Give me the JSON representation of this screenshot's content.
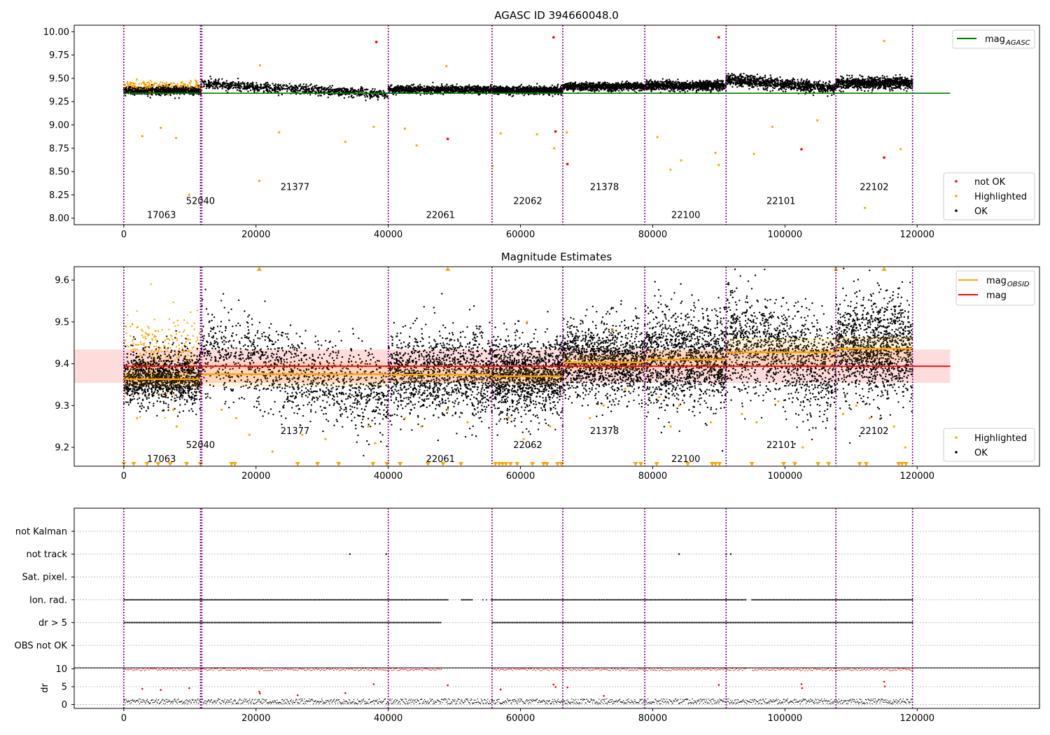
{
  "figure": {
    "background": "#ffffff"
  },
  "colors": {
    "obs_line": "#800080",
    "not_ok": "#ff0000",
    "highlighted": "#ffa500",
    "ok": "#000000",
    "mag_agasc": "#008000",
    "mag_obsid": "#ffa500",
    "mag": "#ff0000",
    "band": "#ffc0c0",
    "grid": "#b0b0b0",
    "axis": "#000000"
  },
  "chart_data": [
    {
      "type": "scatter",
      "title": "AGASC ID 394660048.0",
      "xlim": [
        -7500,
        138500
      ],
      "ylim": [
        7.93,
        10.07
      ],
      "xticks": [
        0,
        20000,
        40000,
        60000,
        80000,
        100000,
        120000
      ],
      "xtick_labels": [
        "0",
        "20000",
        "40000",
        "60000",
        "80000",
        "100000",
        "120000"
      ],
      "yticks": [
        8.0,
        8.25,
        8.5,
        8.75,
        9.0,
        9.25,
        9.5,
        9.75,
        10.0
      ],
      "ytick_labels": [
        "8.00",
        "8.25",
        "8.50",
        "8.75",
        "9.00",
        "9.25",
        "9.50",
        "9.75",
        "10.00"
      ],
      "obs_boundaries": [
        0,
        11600,
        11800,
        40000,
        55700,
        66400,
        78800,
        91100,
        107700,
        119300
      ],
      "obs_labels": [
        {
          "text": "17063",
          "x": 5700,
          "y": 8.04
        },
        {
          "text": "52040",
          "x": 11600,
          "y": 8.19
        },
        {
          "text": "21377",
          "x": 25900,
          "y": 8.34
        },
        {
          "text": "22061",
          "x": 47900,
          "y": 8.04
        },
        {
          "text": "22062",
          "x": 61100,
          "y": 8.19
        },
        {
          "text": "21378",
          "x": 72700,
          "y": 8.34
        },
        {
          "text": "22100",
          "x": 85000,
          "y": 8.04
        },
        {
          "text": "22101",
          "x": 99400,
          "y": 8.19
        },
        {
          "text": "22102",
          "x": 113500,
          "y": 8.34
        }
      ],
      "ok_segments": [
        {
          "x0": 0,
          "x1": 11700,
          "y": 9.37,
          "spread": 0.02
        },
        {
          "x0": 11700,
          "x1": 40000,
          "y": 9.38,
          "y_end": 9.33,
          "y_start": 9.44,
          "spread": 0.025
        },
        {
          "x0": 40000,
          "x1": 55700,
          "y": 9.38,
          "spread": 0.02
        },
        {
          "x0": 55700,
          "x1": 66400,
          "y": 9.37,
          "spread": 0.02
        },
        {
          "x0": 66400,
          "x1": 78800,
          "y": 9.41,
          "spread": 0.02
        },
        {
          "x0": 78800,
          "x1": 91100,
          "y": 9.42,
          "spread": 0.025
        },
        {
          "x0": 91100,
          "x1": 107700,
          "y": 9.45,
          "y_start": 9.49,
          "y_end": 9.39,
          "spread": 0.03
        },
        {
          "x0": 107700,
          "x1": 119300,
          "y": 9.45,
          "spread": 0.03
        }
      ],
      "highlighted_band": {
        "x0": 0,
        "x1": 11600,
        "y": 9.41,
        "spread": 0.03
      },
      "outliers_highlighted": [
        {
          "x": 2800,
          "y": 8.88
        },
        {
          "x": 5600,
          "y": 8.97
        },
        {
          "x": 7900,
          "y": 8.86
        },
        {
          "x": 20600,
          "y": 9.64
        },
        {
          "x": 20500,
          "y": 8.4
        },
        {
          "x": 23500,
          "y": 8.92
        },
        {
          "x": 33500,
          "y": 8.82
        },
        {
          "x": 37800,
          "y": 8.98
        },
        {
          "x": 42500,
          "y": 8.96
        },
        {
          "x": 44300,
          "y": 8.78
        },
        {
          "x": 48800,
          "y": 9.63
        },
        {
          "x": 57000,
          "y": 8.91
        },
        {
          "x": 62500,
          "y": 8.9
        },
        {
          "x": 67000,
          "y": 8.92
        },
        {
          "x": 80700,
          "y": 8.87
        },
        {
          "x": 84300,
          "y": 8.62
        },
        {
          "x": 82700,
          "y": 8.52
        },
        {
          "x": 89500,
          "y": 8.7
        },
        {
          "x": 90000,
          "y": 8.57
        },
        {
          "x": 95300,
          "y": 8.69
        },
        {
          "x": 98100,
          "y": 8.98
        },
        {
          "x": 104900,
          "y": 9.05
        },
        {
          "x": 112100,
          "y": 8.11
        },
        {
          "x": 115000,
          "y": 9.9
        },
        {
          "x": 117500,
          "y": 8.74
        },
        {
          "x": 9900,
          "y": 8.25
        },
        {
          "x": 55800,
          "y": 8.56
        },
        {
          "x": 65100,
          "y": 8.75
        }
      ],
      "outliers_not_ok": [
        {
          "x": 38200,
          "y": 9.89
        },
        {
          "x": 49000,
          "y": 8.85
        },
        {
          "x": 65000,
          "y": 9.94
        },
        {
          "x": 65300,
          "y": 8.93
        },
        {
          "x": 67100,
          "y": 8.58
        },
        {
          "x": 90000,
          "y": 9.94
        },
        {
          "x": 102500,
          "y": 8.74
        },
        {
          "x": 115000,
          "y": 8.65
        }
      ],
      "mag_agasc": {
        "x0": 0,
        "x1": 125000,
        "y": 9.34
      },
      "legend_upper": [
        {
          "label": "mag",
          "sub": "AGASC",
          "kind": "line",
          "color_key": "mag_agasc"
        }
      ],
      "legend_lower": [
        {
          "label": "not OK",
          "kind": "dot",
          "color_key": "not_ok"
        },
        {
          "label": "Highlighted",
          "kind": "dot",
          "color_key": "highlighted"
        },
        {
          "label": "OK",
          "kind": "dot",
          "color_key": "ok"
        }
      ]
    },
    {
      "type": "scatter",
      "title": "Magnitude Estimates",
      "xlim": [
        -7500,
        138500
      ],
      "ylim": [
        9.155,
        9.632
      ],
      "xticks": [
        0,
        20000,
        40000,
        60000,
        80000,
        100000,
        120000
      ],
      "xtick_labels": [
        "0",
        "20000",
        "40000",
        "60000",
        "80000",
        "100000",
        "120000"
      ],
      "yticks": [
        9.2,
        9.3,
        9.4,
        9.5,
        9.6
      ],
      "ytick_labels": [
        "9.2",
        "9.3",
        "9.4",
        "9.5",
        "9.6"
      ],
      "obs_boundaries": [
        0,
        11600,
        11800,
        40000,
        55700,
        66400,
        78800,
        91100,
        107700,
        119300
      ],
      "obs_labels": [
        {
          "text": "17063",
          "x": 5700,
          "y": 9.173
        },
        {
          "text": "52040",
          "x": 11600,
          "y": 9.207
        },
        {
          "text": "21377",
          "x": 25900,
          "y": 9.24
        },
        {
          "text": "22061",
          "x": 47900,
          "y": 9.173
        },
        {
          "text": "22062",
          "x": 61100,
          "y": 9.207
        },
        {
          "text": "21378",
          "x": 72700,
          "y": 9.24
        },
        {
          "text": "22100",
          "x": 85000,
          "y": 9.173
        },
        {
          "text": "22101",
          "x": 99400,
          "y": 9.207
        },
        {
          "text": "22102",
          "x": 113500,
          "y": 9.24
        }
      ],
      "mag_obsid": [
        {
          "x0": 0,
          "x1": 11700,
          "y": 9.363,
          "std": 0.018
        },
        {
          "x0": 11700,
          "x1": 40000,
          "y": 9.375,
          "std": 0.03
        },
        {
          "x0": 40000,
          "x1": 55700,
          "y": 9.374,
          "std": 0.02
        },
        {
          "x0": 55700,
          "x1": 66400,
          "y": 9.37,
          "std": 0.02
        },
        {
          "x0": 66400,
          "x1": 78800,
          "y": 9.403,
          "std": 0.02
        },
        {
          "x0": 78800,
          "x1": 91100,
          "y": 9.41,
          "std": 0.022
        },
        {
          "x0": 91100,
          "x1": 107700,
          "y": 9.427,
          "std": 0.035
        },
        {
          "x0": 107700,
          "x1": 119300,
          "y": 9.436,
          "std": 0.03
        }
      ],
      "ok_segments": [
        {
          "x0": 0,
          "x1": 11700,
          "y": 9.365,
          "spread": 0.03
        },
        {
          "x0": 11700,
          "x1": 40000,
          "y": 9.38,
          "y_start": 9.44,
          "y_end": 9.32,
          "spread": 0.05
        },
        {
          "x0": 40000,
          "x1": 55700,
          "y": 9.375,
          "spread": 0.05
        },
        {
          "x0": 55700,
          "x1": 66400,
          "y": 9.37,
          "spread": 0.045
        },
        {
          "x0": 66400,
          "x1": 78800,
          "y": 9.405,
          "spread": 0.045
        },
        {
          "x0": 78800,
          "x1": 91100,
          "y": 9.41,
          "spread": 0.06
        },
        {
          "x0": 91100,
          "x1": 107700,
          "y": 9.43,
          "y_start": 9.47,
          "y_end": 9.38,
          "spread": 0.06
        },
        {
          "x0": 107700,
          "x1": 119300,
          "y": 9.44,
          "spread": 0.06
        }
      ],
      "highlighted_band": {
        "x0": 0,
        "x1": 11600,
        "y": 9.42,
        "spread": 0.045
      },
      "outliers_highlighted": [
        {
          "x": 2000,
          "y": 9.27
        },
        {
          "x": 7500,
          "y": 9.29
        },
        {
          "x": 8000,
          "y": 9.25
        },
        {
          "x": 14800,
          "y": 9.29
        },
        {
          "x": 17000,
          "y": 9.27
        },
        {
          "x": 19000,
          "y": 9.23
        },
        {
          "x": 22500,
          "y": 9.19
        },
        {
          "x": 27000,
          "y": 9.23
        },
        {
          "x": 30500,
          "y": 9.22
        },
        {
          "x": 37000,
          "y": 9.25
        },
        {
          "x": 38000,
          "y": 9.21
        },
        {
          "x": 42500,
          "y": 9.27
        },
        {
          "x": 45000,
          "y": 9.25
        },
        {
          "x": 49000,
          "y": 9.29
        },
        {
          "x": 52000,
          "y": 9.26
        },
        {
          "x": 58200,
          "y": 9.27
        },
        {
          "x": 60500,
          "y": 9.22
        },
        {
          "x": 64500,
          "y": 9.25
        },
        {
          "x": 70500,
          "y": 9.27
        },
        {
          "x": 72600,
          "y": 9.3
        },
        {
          "x": 75800,
          "y": 9.34
        },
        {
          "x": 81000,
          "y": 9.32
        },
        {
          "x": 82700,
          "y": 9.25
        },
        {
          "x": 84000,
          "y": 9.3
        },
        {
          "x": 88800,
          "y": 9.26
        },
        {
          "x": 93500,
          "y": 9.28
        },
        {
          "x": 95700,
          "y": 9.26
        },
        {
          "x": 99000,
          "y": 9.31
        },
        {
          "x": 102700,
          "y": 9.2
        },
        {
          "x": 108800,
          "y": 9.28
        },
        {
          "x": 110800,
          "y": 9.3
        },
        {
          "x": 112800,
          "y": 9.27
        },
        {
          "x": 116500,
          "y": 9.25
        },
        {
          "x": 118200,
          "y": 9.2
        },
        {
          "x": 61000,
          "y": 9.5
        },
        {
          "x": 74000,
          "y": 9.48
        }
      ],
      "clipped_top": [
        20500,
        49000,
        107700,
        115000
      ],
      "clipped_bottom": [
        0,
        1500,
        3500,
        5200,
        7000,
        9500,
        11600,
        16300,
        16800,
        26300,
        29300,
        32500,
        37700,
        39800,
        41800,
        46000,
        48300,
        51000,
        56200,
        56800,
        57300,
        57800,
        58500,
        59500,
        61800,
        63500,
        64000,
        65600,
        66200,
        77400,
        78200,
        80600,
        85300,
        89000,
        89500,
        90100,
        95000,
        99800,
        101500,
        105000,
        106600,
        111300,
        112300,
        117200,
        117700,
        118300
      ],
      "mag_band": {
        "x0": -7500,
        "x1": 125000,
        "y": 9.394,
        "half_width": 0.04
      },
      "legend_upper": [
        {
          "label": "mag",
          "sub": "OBSID",
          "kind": "line",
          "color_key": "mag_obsid"
        },
        {
          "label": "mag",
          "sub": "",
          "kind": "line",
          "color_key": "mag"
        }
      ],
      "legend_lower": [
        {
          "label": "Highlighted",
          "kind": "dot",
          "color_key": "highlighted"
        },
        {
          "label": "OK",
          "kind": "dot",
          "color_key": "ok"
        }
      ]
    },
    {
      "type": "scatter",
      "title": "",
      "xlim": [
        -7500,
        138500
      ],
      "xticks": [
        0,
        20000,
        40000,
        60000,
        80000,
        100000,
        120000
      ],
      "xtick_labels": [
        "0",
        "20000",
        "40000",
        "60000",
        "80000",
        "100000",
        "120000"
      ],
      "flag_labels": [
        "not Kalman",
        "not track",
        "Sat. pixel.",
        "Ion. rad.",
        "dr > 5",
        "OBS not OK"
      ],
      "flag_points": {
        "not Kalman": [],
        "not track": [
          34200,
          39700,
          84000,
          91100,
          91800
        ],
        "Sat. pixel.": [],
        "Ion. rad.": {
          "ranges": [
            [
              0,
              49000
            ],
            [
              51000,
              119300
            ]
          ],
          "gaps": [
            [
              49000,
              51000
            ],
            [
              52500,
              55600
            ],
            [
              94000,
              95000
            ]
          ]
        },
        "dr > 5": {
          "ranges": [
            [
              0,
              48000
            ],
            [
              55700,
              119300
            ]
          ],
          "gaps": [
            [
              48000,
              55600
            ]
          ]
        },
        "OBS not OK": []
      },
      "dr_yticks": [
        0,
        5,
        10
      ],
      "dr_ytick_labels": [
        "0",
        "5",
        "10"
      ],
      "dr_ylim": [
        -0.5,
        10.5
      ],
      "dr_ylabel": "dr",
      "obs_boundaries": [
        0,
        11600,
        11800,
        40000,
        55700,
        66400,
        78800,
        91100,
        107700,
        119300
      ]
    }
  ]
}
